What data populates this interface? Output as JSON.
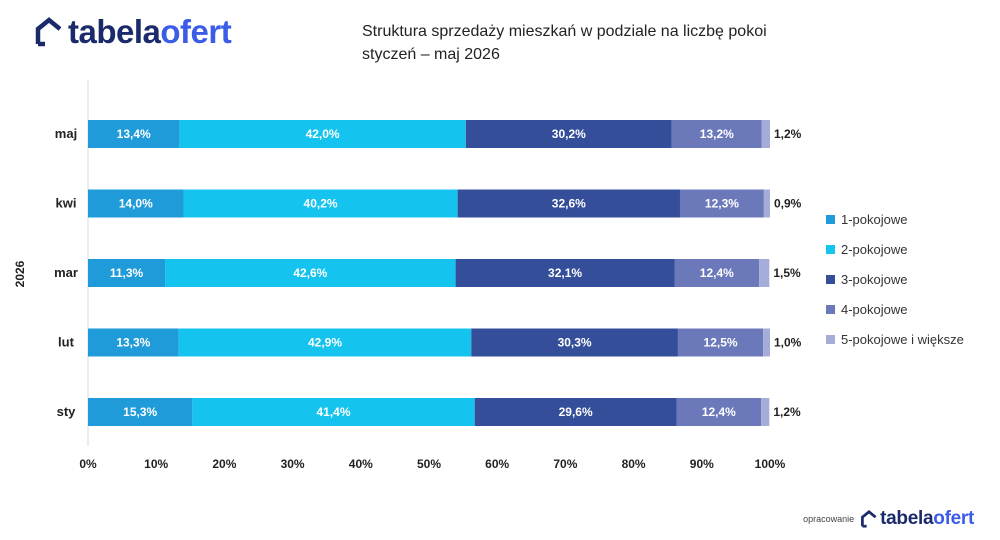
{
  "brand": {
    "logo_light": "tabela",
    "logo_strong": "ofert",
    "logo_icon": "house-outline-icon",
    "footer_label": "opracowanie"
  },
  "header": {
    "title_line1": "Struktura sprzedaży mieszkań w podziale na liczbę pokoi",
    "title_line2": "styczeń – maj 2026"
  },
  "chart_data": {
    "type": "bar",
    "orientation": "horizontal",
    "stacked": true,
    "ylabel": "2026",
    "xlabel": "",
    "xlim": [
      0,
      100
    ],
    "xticks": [
      "0%",
      "10%",
      "20%",
      "30%",
      "40%",
      "50%",
      "60%",
      "70%",
      "80%",
      "90%",
      "100%"
    ],
    "categories": [
      "maj",
      "kwi",
      "mar",
      "lut",
      "sty"
    ],
    "series": [
      {
        "name": "1-pokojowe",
        "color": "#1f9bd9",
        "values": [
          13.4,
          14.0,
          11.3,
          13.3,
          15.3
        ],
        "labels": [
          "13,4%",
          "14,0%",
          "11,3%",
          "13,3%",
          "15,3%"
        ]
      },
      {
        "name": "2-pokojowe",
        "color": "#14c4ee",
        "values": [
          42.0,
          40.2,
          42.6,
          42.9,
          41.4
        ],
        "labels": [
          "42,0%",
          "40,2%",
          "42,6%",
          "42,9%",
          "41,4%"
        ]
      },
      {
        "name": "3-pokojowe",
        "color": "#344e9a",
        "values": [
          30.2,
          32.6,
          32.1,
          30.3,
          29.6
        ],
        "labels": [
          "30,2%",
          "32,6%",
          "32,1%",
          "30,3%",
          "29,6%"
        ]
      },
      {
        "name": "4-pokojowe",
        "color": "#6b79bb",
        "values": [
          13.2,
          12.3,
          12.4,
          12.5,
          12.4
        ],
        "labels": [
          "13,2%",
          "12,3%",
          "12,4%",
          "12,5%",
          "12,4%"
        ]
      },
      {
        "name": "5-pokojowe i większe",
        "color": "#a5acd8",
        "values": [
          1.2,
          0.9,
          1.5,
          1.0,
          1.2
        ],
        "labels": [
          "1,2%",
          "0,9%",
          "1,5%",
          "1,0%",
          "1,2%"
        ]
      }
    ],
    "grid": false,
    "legend_position": "right"
  }
}
